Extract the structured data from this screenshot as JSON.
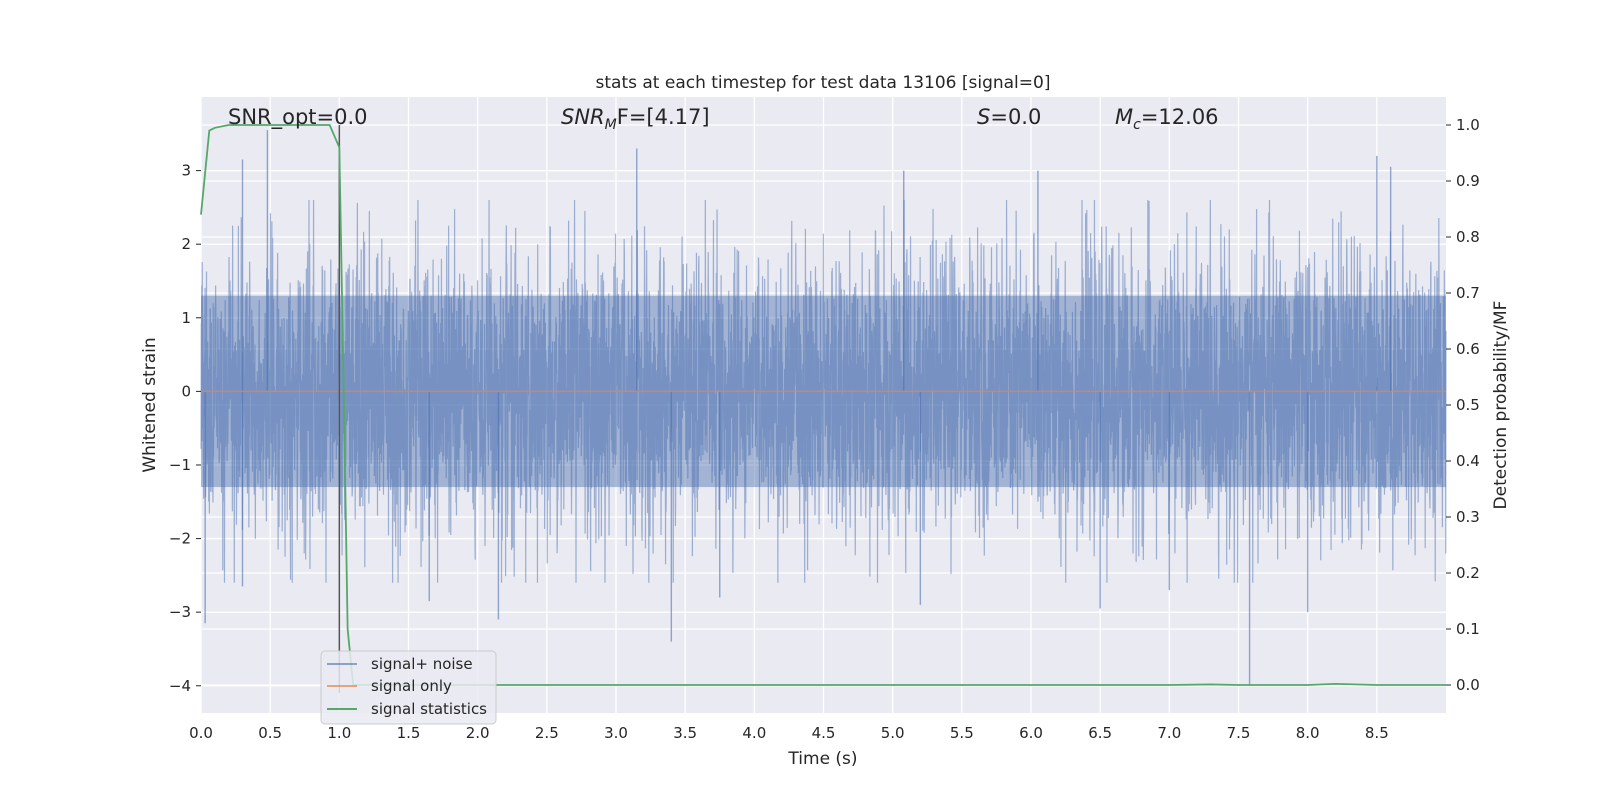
{
  "chart_data": {
    "type": "line",
    "title": "stats at each timestep for test data 13106 [signal=0]",
    "xlabel": "Time (s)",
    "ylabel": "Whitened strain",
    "y2label": "Detection probability/MF",
    "xlim": [
      0.0,
      9.0
    ],
    "ylim": [
      -4.37,
      4.0
    ],
    "y2lim": [
      -0.05,
      1.05
    ],
    "x_ticks": [
      "0.0",
      "0.5",
      "1.0",
      "1.5",
      "2.0",
      "2.5",
      "3.0",
      "3.5",
      "4.0",
      "4.5",
      "5.0",
      "5.5",
      "6.0",
      "6.5",
      "7.0",
      "7.5",
      "8.0",
      "8.5"
    ],
    "y_ticks": [
      "3",
      "2",
      "1",
      "0",
      "−1",
      "−2",
      "−3",
      "−4"
    ],
    "y2_ticks": [
      "1.0",
      "0.9",
      "0.8",
      "0.7",
      "0.6",
      "0.5",
      "0.4",
      "0.3",
      "0.2",
      "0.1",
      "0.0"
    ],
    "grid": true,
    "legend_position": "lower-left",
    "vertical_marker_x": 1.0,
    "annotations": {
      "snr_opt": "SNR_opt=0.0",
      "snr_mf_prefix": "SNR",
      "snr_mf_sub": "M",
      "snr_mf_suffix": "F=[4.17]",
      "s_prefix": "S",
      "s_value": "=0.0",
      "mc_prefix": "M",
      "mc_sub": "c",
      "mc_value": "=12.06"
    },
    "series": [
      {
        "name": "signal+ noise",
        "axis": "left",
        "color": "#4c72b0",
        "note_points_per_second": 2048,
        "typical_band": [
          -1.3,
          1.3
        ],
        "peaks": [
          {
            "x": 0.03,
            "y": -3.15
          },
          {
            "x": 0.3,
            "y": -2.65
          },
          {
            "x": 0.48,
            "y": 3.55
          },
          {
            "x": 0.3,
            "y": 3.15
          },
          {
            "x": 1.65,
            "y": -2.85
          },
          {
            "x": 2.15,
            "y": -3.1
          },
          {
            "x": 3.15,
            "y": 3.3
          },
          {
            "x": 3.4,
            "y": -3.4
          },
          {
            "x": 3.75,
            "y": -2.8
          },
          {
            "x": 5.08,
            "y": 3.0
          },
          {
            "x": 5.2,
            "y": -2.9
          },
          {
            "x": 6.05,
            "y": 3.0
          },
          {
            "x": 6.5,
            "y": -2.95
          },
          {
            "x": 7.0,
            "y": -2.7
          },
          {
            "x": 7.58,
            "y": -4.0
          },
          {
            "x": 8.0,
            "y": -3.0
          },
          {
            "x": 8.5,
            "y": 3.2
          },
          {
            "x": 8.6,
            "y": 3.05
          }
        ]
      },
      {
        "name": "signal only",
        "axis": "left",
        "color": "#dd8452",
        "x": [
          0.0,
          9.0
        ],
        "y": [
          0.0,
          0.0
        ]
      },
      {
        "name": "signal statistics",
        "axis": "right",
        "color": "#55a868",
        "x": [
          0.0,
          0.06,
          0.1,
          0.2,
          0.5,
          0.8,
          0.93,
          1.0,
          1.03,
          1.06,
          1.1,
          1.2,
          2.0,
          3.0,
          4.0,
          5.0,
          6.0,
          7.0,
          7.3,
          7.5,
          8.0,
          8.2,
          8.5,
          9.0
        ],
        "y": [
          0.84,
          0.99,
          0.995,
          1.0,
          1.0,
          1.0,
          1.0,
          0.96,
          0.55,
          0.1,
          0.0,
          0.0,
          0.0,
          0.0,
          0.0,
          0.0,
          0.0,
          0.0,
          0.001,
          0.0,
          0.0,
          0.002,
          0.0,
          0.0
        ]
      }
    ]
  }
}
